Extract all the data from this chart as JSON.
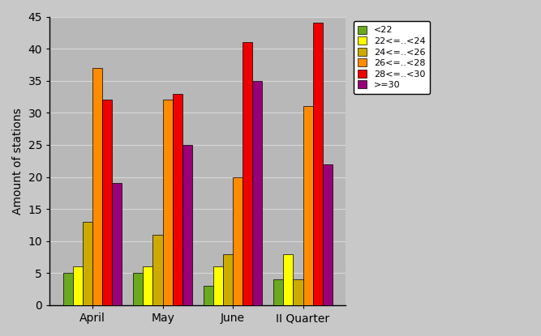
{
  "categories": [
    "April",
    "May",
    "June",
    "II Quarter"
  ],
  "series": [
    {
      "label": "<22",
      "color": "#6aaa1e",
      "values": [
        5,
        5,
        3,
        4
      ]
    },
    {
      "label": "22<=..<24",
      "color": "#ffff00",
      "values": [
        6,
        6,
        6,
        8
      ]
    },
    {
      "label": "24<=..<26",
      "color": "#ccaa00",
      "values": [
        13,
        11,
        8,
        4
      ]
    },
    {
      "label": "26<=..<28",
      "color": "#ff8c00",
      "values": [
        37,
        32,
        20,
        31
      ]
    },
    {
      "label": "28<=..<30",
      "color": "#ee0000",
      "values": [
        32,
        33,
        41,
        44
      ]
    },
    {
      "label": ">=30",
      "color": "#990077",
      "values": [
        19,
        25,
        35,
        22
      ]
    }
  ],
  "ylabel": "Amount of stations",
  "ylim": [
    0,
    45
  ],
  "yticks": [
    0,
    5,
    10,
    15,
    20,
    25,
    30,
    35,
    40,
    45
  ],
  "fig_background_color": "#c8c8c8",
  "plot_background_color": "#b8b8b8",
  "grid_color": "#d8d8d8",
  "bar_edge_color": "#000000",
  "legend_position": "upper right",
  "figsize": [
    6.67,
    4.15
  ],
  "dpi": 100,
  "bar_width": 0.14
}
